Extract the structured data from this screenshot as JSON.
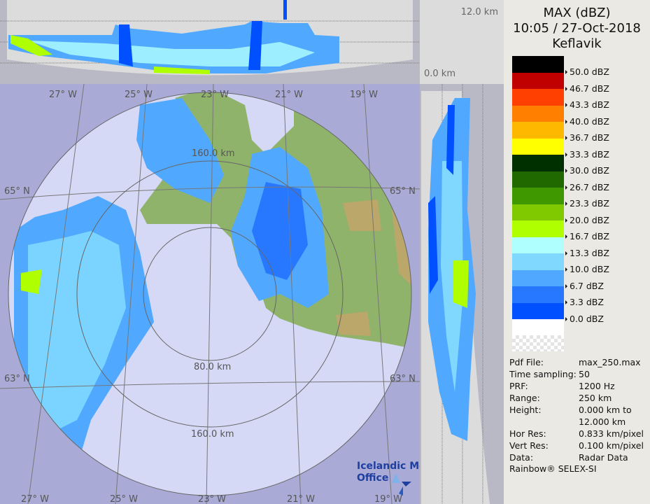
{
  "header": {
    "product": "MAX (dBZ)",
    "datetime": "10:05 / 27-Oct-2018",
    "site": "Keflavik"
  },
  "scale": {
    "colors": [
      "#000000",
      "#c00000",
      "#ff4000",
      "#ff8000",
      "#ffb800",
      "#ffff00",
      "#003000",
      "#206800",
      "#409800",
      "#80c800",
      "#b0ff00",
      "#b0ffff",
      "#80d8ff",
      "#50a8ff",
      "#2878ff",
      "#0050ff",
      "#ffffff"
    ],
    "labels": [
      "50.0 dBZ",
      "46.7 dBZ",
      "43.3 dBZ",
      "40.0 dBZ",
      "36.7 dBZ",
      "33.3 dBZ",
      "30.0 dBZ",
      "26.7 dBZ",
      "23.3 dBZ",
      "20.0 dBZ",
      "16.7 dBZ",
      "13.3 dBZ",
      "10.0 dBZ",
      "6.7 dBZ",
      "3.3 dBZ",
      "0.0 dBZ"
    ]
  },
  "info": [
    {
      "key": "Pdf File:",
      "value": "max_250.max"
    },
    {
      "key": "Time sampling:",
      "value": "50"
    },
    {
      "key": "PRF:",
      "value": "1200 Hz"
    },
    {
      "key": "Range:",
      "value": "250 km"
    },
    {
      "key": "Height:",
      "value": "0.000 km to"
    },
    {
      "key": "",
      "value": "12.000 km"
    },
    {
      "key": "Hor Res:",
      "value": "0.833 km/pixel"
    },
    {
      "key": "Vert Res:",
      "value": "0.100 km/pixel"
    },
    {
      "key": "Data:",
      "value": "Radar Data"
    }
  ],
  "credit": "Rainbow® SELEX-SI",
  "map": {
    "height_top": "12.0 km",
    "height_bottom": "0.0 km",
    "lon_labels_top": [
      "27° W",
      "25° W",
      "23° W",
      "21° W",
      "19° W"
    ],
    "lon_labels_bottom": [
      "27° W",
      "25° W",
      "23° W",
      "21° W",
      "19° W"
    ],
    "lat_labels": [
      "65° N",
      "65° N",
      "63° N",
      "63° N"
    ],
    "range_labels": [
      "160.0 km",
      "80.0 km",
      "160.0 km"
    ],
    "logo": "Icelandic Met Office",
    "logo_line1": "Icelandic Met",
    "logo_line2": "Office"
  }
}
